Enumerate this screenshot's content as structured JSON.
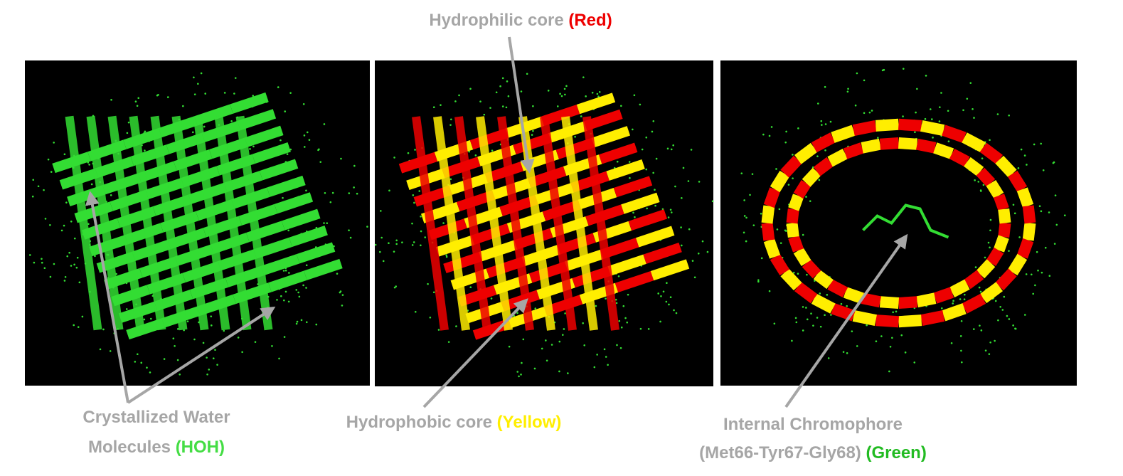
{
  "annotations": [
    {
      "lines": [
        {
          "text": "Hydrophilic core",
          "highlight": "(Red)"
        }
      ],
      "highlight_color": "#ee0000"
    },
    {
      "lines": [
        {
          "text": "Crystallized Water"
        },
        {
          "text": "Molecules",
          "highlight": "(HOH)"
        }
      ],
      "highlight_color": "#44dd44"
    },
    {
      "lines": [
        {
          "text": "Hydrophobic core",
          "highlight": "(Yellow)"
        }
      ],
      "highlight_color": "#ffee00"
    },
    {
      "lines": [
        {
          "text": "Internal Chromophore"
        },
        {
          "text": "(Met66-Tyr67-Gly68)",
          "highlight": "(Green)"
        }
      ],
      "highlight_color": "#22bb22"
    }
  ]
}
